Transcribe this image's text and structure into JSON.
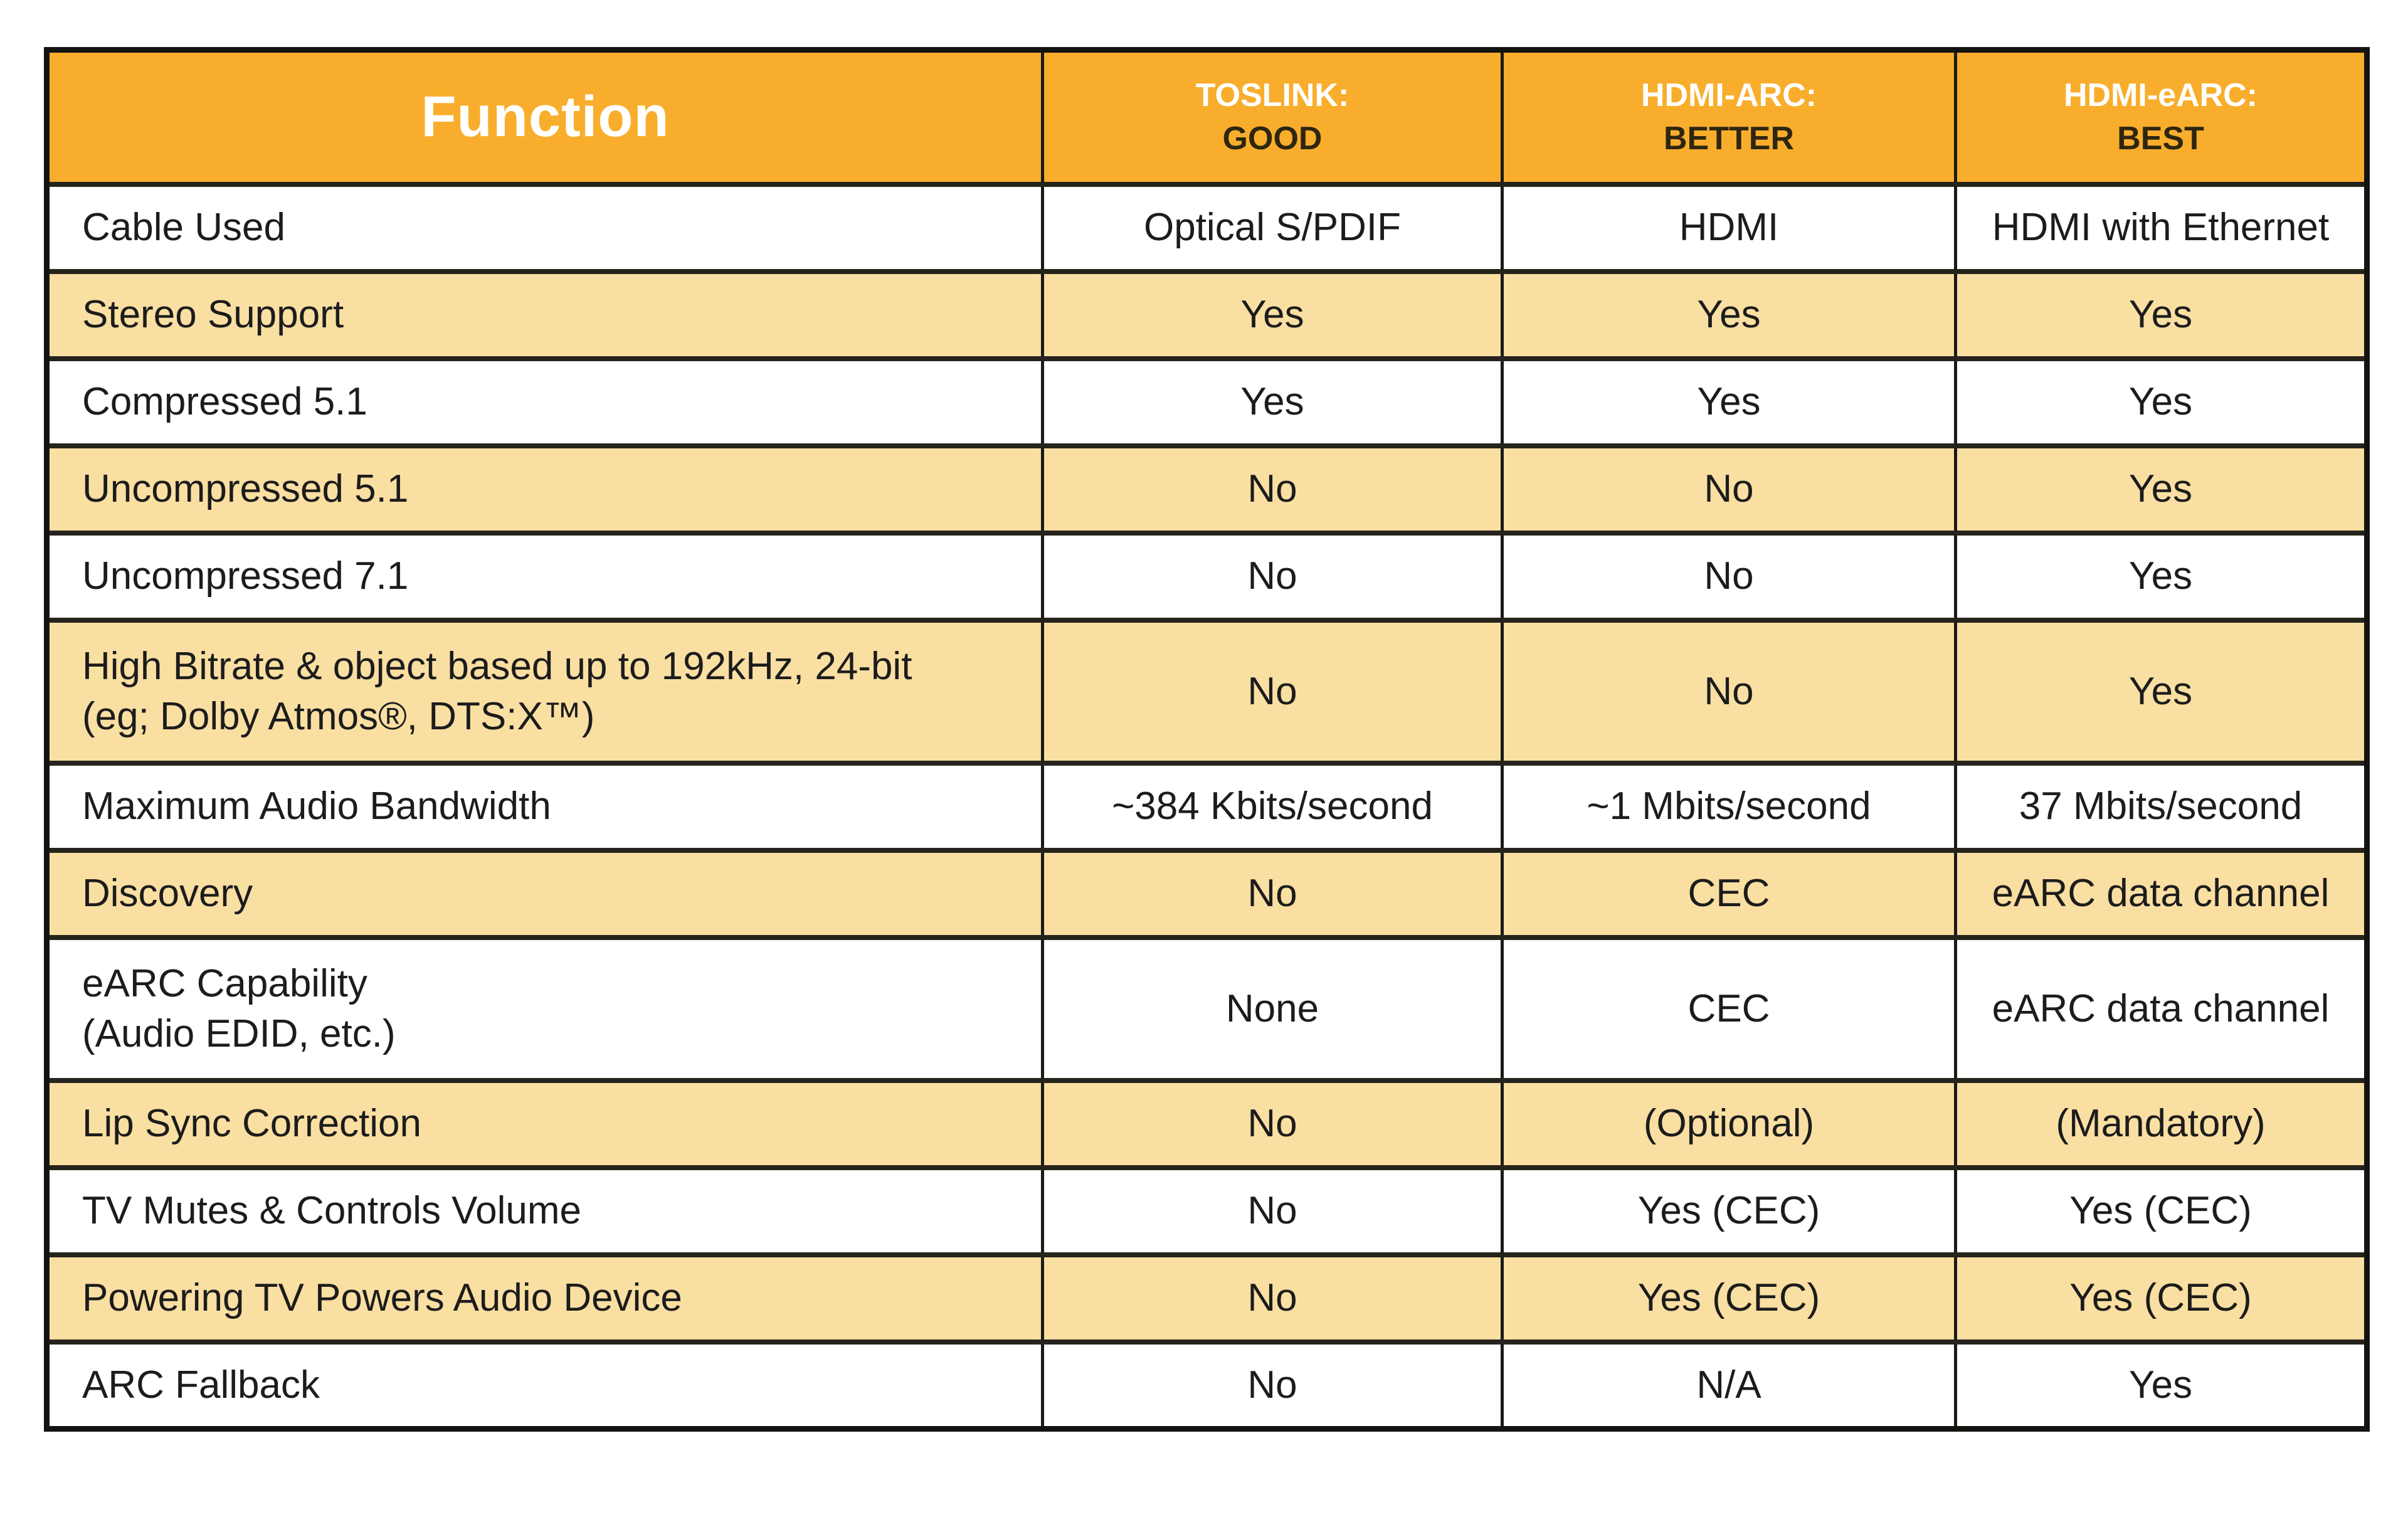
{
  "colors": {
    "header_bg": "#F8AE2C",
    "row_bg": "#FFFFFF",
    "row_alt_bg": "#FADFA2",
    "border_outer": "#151311",
    "border_vert": "#1B1A17",
    "border_horiz": "#26231D",
    "header_text_light": "#FFFFFF",
    "header_text_dark": "#2F2610",
    "body_text": "#1C1C1C"
  },
  "chart_data": {
    "type": "table",
    "title": "",
    "columns": [
      {
        "header": "Function",
        "rating": ""
      },
      {
        "header": "TOSLINK:",
        "rating": "GOOD"
      },
      {
        "header": "HDMI-ARC:",
        "rating": "BETTER"
      },
      {
        "header": "HDMI-eARC:",
        "rating": "BEST"
      }
    ],
    "rows": [
      {
        "function": "Cable Used",
        "function2": "",
        "values": [
          "Optical S/PDIF",
          "HDMI",
          "HDMI with Ethernet"
        ],
        "shaded": false,
        "tall": false
      },
      {
        "function": "Stereo Support",
        "function2": "",
        "values": [
          "Yes",
          "Yes",
          "Yes"
        ],
        "shaded": true,
        "tall": false
      },
      {
        "function": "Compressed 5.1",
        "function2": "",
        "values": [
          "Yes",
          "Yes",
          "Yes"
        ],
        "shaded": false,
        "tall": false
      },
      {
        "function": "Uncompressed 5.1",
        "function2": "",
        "values": [
          "No",
          "No",
          "Yes"
        ],
        "shaded": true,
        "tall": false
      },
      {
        "function": "Uncompressed 7.1",
        "function2": "",
        "values": [
          "No",
          "No",
          "Yes"
        ],
        "shaded": false,
        "tall": false
      },
      {
        "function": "High Bitrate & object based up to 192kHz, 24-bit",
        "function2": "(eg; Dolby Atmos®, DTS:X™)",
        "values": [
          "No",
          "No",
          "Yes"
        ],
        "shaded": true,
        "tall": true
      },
      {
        "function": "Maximum Audio Bandwidth",
        "function2": "",
        "values": [
          "~384 Kbits/second",
          "~1 Mbits/second",
          "37 Mbits/second"
        ],
        "shaded": false,
        "tall": false
      },
      {
        "function": "Discovery",
        "function2": "",
        "values": [
          "No",
          "CEC",
          "eARC data channel"
        ],
        "shaded": true,
        "tall": false
      },
      {
        "function": "eARC Capability",
        "function2": "(Audio EDID, etc.)",
        "values": [
          "None",
          "CEC",
          "eARC data channel"
        ],
        "shaded": false,
        "tall": true
      },
      {
        "function": "Lip Sync Correction",
        "function2": "",
        "values": [
          "No",
          "(Optional)",
          "(Mandatory)"
        ],
        "shaded": true,
        "tall": false
      },
      {
        "function": "TV Mutes & Controls Volume",
        "function2": "",
        "values": [
          "No",
          "Yes (CEC)",
          "Yes (CEC)"
        ],
        "shaded": false,
        "tall": false
      },
      {
        "function": "Powering TV Powers Audio Device",
        "function2": "",
        "values": [
          "No",
          "Yes (CEC)",
          "Yes (CEC)"
        ],
        "shaded": true,
        "tall": false
      },
      {
        "function": "ARC Fallback",
        "function2": "",
        "values": [
          "No",
          "N/A",
          "Yes"
        ],
        "shaded": false,
        "tall": false
      }
    ]
  }
}
